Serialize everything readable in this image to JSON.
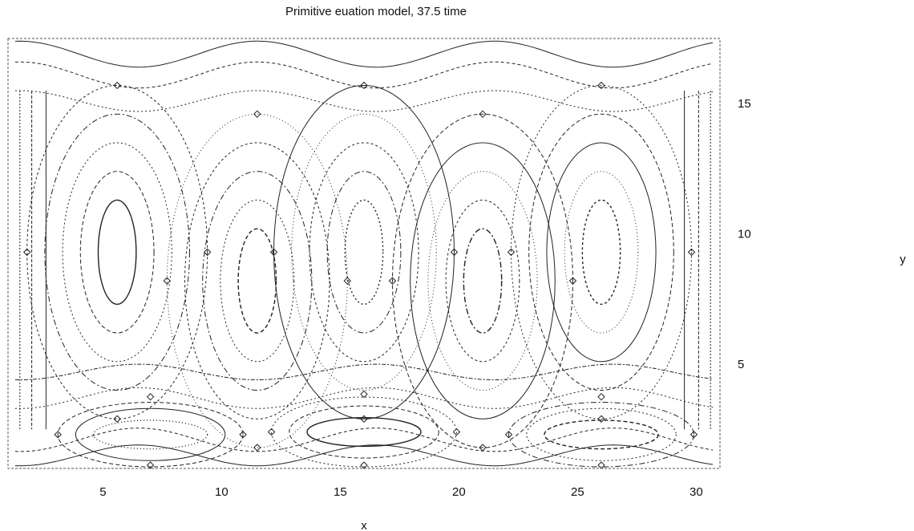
{
  "chart_data": {
    "type": "contour",
    "title": "Primitive euation model, 37.5 time",
    "xlabel": "x",
    "ylabel": "y",
    "xlim": [
      1,
      31
    ],
    "ylim": [
      1,
      17.5
    ],
    "xticks": [
      5,
      10,
      15,
      20,
      25,
      30
    ],
    "yticks": [
      5,
      10,
      15
    ],
    "grid": false,
    "colors": {
      "line": "#222222",
      "frame": "#555555",
      "background": "#ffffff"
    },
    "cells": [
      {
        "cx": 5.6,
        "cy": 9.3,
        "type": "elongated-vertical"
      },
      {
        "cx": 11.5,
        "cy": 8.2,
        "type": "elongated-vertical"
      },
      {
        "cx": 16.0,
        "cy": 9.3,
        "type": "elongated-vertical"
      },
      {
        "cx": 21.0,
        "cy": 8.2,
        "type": "elongated-vertical"
      },
      {
        "cx": 26.0,
        "cy": 9.3,
        "type": "elongated-vertical"
      },
      {
        "cx": 7.0,
        "cy": 2.3,
        "type": "elongated-horizontal"
      },
      {
        "cx": 16.0,
        "cy": 2.4,
        "type": "elongated-horizontal"
      },
      {
        "cx": 26.0,
        "cy": 2.3,
        "type": "elongated-horizontal"
      }
    ]
  }
}
